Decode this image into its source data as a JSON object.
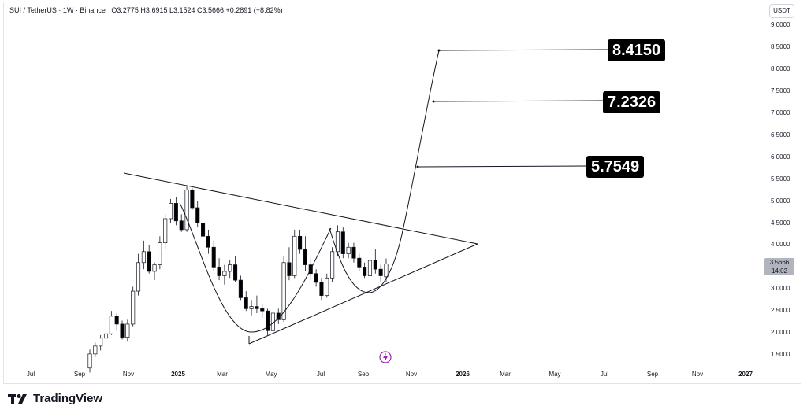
{
  "header": {
    "symbol_line": "SUI / TetherUS · 1W · Binance",
    "ohlc": "O3.2775  H3.6915  L3.1524  C3.5666  +0.2891 (+8.82%)"
  },
  "currency_button": "USDT",
  "last_price": {
    "value": "3.5666",
    "countdown": "14:02"
  },
  "targets": [
    "8.4150",
    "7.2326",
    "5.7549"
  ],
  "footer": {
    "brand": "TradingView"
  },
  "colors": {
    "bull": "#ffffff",
    "bear": "#000000",
    "target_bg": "#000000",
    "accent": "#9c27b0"
  },
  "chart_data": {
    "type": "candlestick",
    "title": "SUI / TetherUS · 1W · Binance",
    "y_ticks": [
      "9.0000",
      "8.5000",
      "8.0000",
      "7.5000",
      "7.0000",
      "6.5000",
      "6.0000",
      "5.5000",
      "5.0000",
      "4.5000",
      "4.0000",
      "3.0000",
      "2.5000",
      "2.0000",
      "1.5000"
    ],
    "x_ticks": [
      {
        "label": "Jul",
        "bold": false
      },
      {
        "label": "Sep",
        "bold": false
      },
      {
        "label": "Nov",
        "bold": false
      },
      {
        "label": "2025",
        "bold": true
      },
      {
        "label": "Mar",
        "bold": false
      },
      {
        "label": "May",
        "bold": false
      },
      {
        "label": "Jul",
        "bold": false
      },
      {
        "label": "Sep",
        "bold": false
      },
      {
        "label": "Nov",
        "bold": false
      },
      {
        "label": "2026",
        "bold": true
      },
      {
        "label": "Mar",
        "bold": false
      },
      {
        "label": "May",
        "bold": false
      },
      {
        "label": "Jul",
        "bold": false
      },
      {
        "label": "Sep",
        "bold": false
      },
      {
        "label": "Nov",
        "bold": false
      },
      {
        "label": "2027",
        "bold": true
      }
    ],
    "ylim": [
      1.2,
      9.3
    ],
    "candles": [
      [
        1.2,
        1.62,
        1.1,
        1.52
      ],
      [
        1.52,
        1.78,
        1.45,
        1.7
      ],
      [
        1.7,
        1.95,
        1.6,
        1.88
      ],
      [
        1.88,
        2.05,
        1.78,
        1.98
      ],
      [
        1.98,
        2.5,
        1.95,
        2.38
      ],
      [
        2.38,
        2.45,
        2.05,
        2.2
      ],
      [
        2.2,
        2.28,
        1.85,
        1.9
      ],
      [
        1.9,
        2.3,
        1.8,
        2.2
      ],
      [
        2.2,
        3.05,
        2.15,
        2.95
      ],
      [
        2.95,
        3.8,
        2.85,
        3.6
      ],
      [
        3.6,
        4.1,
        3.45,
        3.85
      ],
      [
        3.85,
        4.0,
        3.35,
        3.4
      ],
      [
        3.4,
        3.6,
        3.2,
        3.55
      ],
      [
        3.55,
        4.2,
        3.45,
        4.05
      ],
      [
        4.05,
        4.7,
        3.9,
        4.6
      ],
      [
        4.6,
        5.05,
        4.5,
        4.95
      ],
      [
        4.95,
        5.1,
        4.45,
        4.55
      ],
      [
        4.55,
        4.7,
        4.3,
        4.35
      ],
      [
        4.35,
        5.35,
        4.3,
        5.25
      ],
      [
        5.25,
        5.3,
        4.8,
        4.85
      ],
      [
        4.85,
        5.0,
        4.4,
        4.5
      ],
      [
        4.5,
        4.8,
        4.1,
        4.2
      ],
      [
        4.2,
        4.35,
        3.8,
        3.95
      ],
      [
        3.95,
        4.1,
        3.4,
        3.5
      ],
      [
        3.5,
        3.7,
        3.2,
        3.3
      ],
      [
        3.3,
        3.55,
        3.1,
        3.4
      ],
      [
        3.4,
        3.65,
        3.25,
        3.55
      ],
      [
        3.55,
        3.75,
        3.15,
        3.2
      ],
      [
        3.2,
        3.3,
        2.75,
        2.8
      ],
      [
        2.8,
        2.95,
        2.5,
        2.55
      ],
      [
        2.55,
        2.75,
        2.4,
        2.6
      ],
      [
        2.6,
        2.85,
        2.45,
        2.55
      ],
      [
        2.55,
        2.65,
        2.35,
        2.5
      ],
      [
        2.5,
        2.55,
        1.95,
        2.05
      ],
      [
        2.05,
        2.6,
        1.75,
        2.45
      ],
      [
        2.45,
        2.55,
        2.2,
        2.3
      ],
      [
        2.3,
        3.75,
        2.25,
        3.6
      ],
      [
        3.6,
        3.95,
        3.2,
        3.3
      ],
      [
        3.3,
        4.35,
        3.25,
        4.2
      ],
      [
        4.2,
        4.35,
        3.8,
        3.9
      ],
      [
        3.9,
        4.2,
        3.4,
        3.55
      ],
      [
        3.55,
        3.7,
        3.2,
        3.35
      ],
      [
        3.35,
        3.45,
        3.05,
        3.15
      ],
      [
        3.15,
        3.25,
        2.75,
        2.85
      ],
      [
        2.85,
        3.35,
        2.8,
        3.25
      ],
      [
        3.25,
        3.95,
        3.15,
        3.85
      ],
      [
        3.85,
        4.45,
        3.75,
        4.3
      ],
      [
        4.3,
        4.4,
        3.7,
        3.8
      ],
      [
        3.8,
        4.05,
        3.7,
        3.95
      ],
      [
        3.95,
        4.05,
        3.6,
        3.7
      ],
      [
        3.7,
        3.8,
        3.4,
        3.5
      ],
      [
        3.5,
        3.6,
        3.25,
        3.3
      ],
      [
        3.3,
        3.75,
        3.2,
        3.65
      ],
      [
        3.65,
        3.9,
        3.35,
        3.45
      ],
      [
        3.45,
        3.55,
        3.15,
        3.3
      ],
      [
        3.2775,
        3.6915,
        3.1524,
        3.5666
      ]
    ],
    "last_price": 3.5666
  }
}
